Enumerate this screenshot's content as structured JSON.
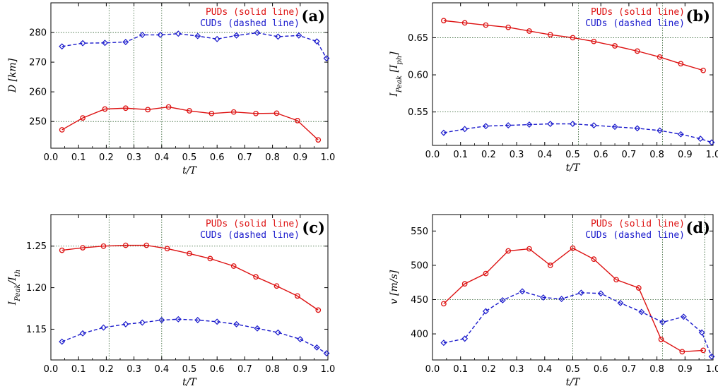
{
  "colors": {
    "pud": "#dd1111",
    "cud": "#1a1acc",
    "grid": "#2f5f2f"
  },
  "chart_data": [
    {
      "type": "line",
      "panel": "(a)",
      "xlabel": "t/T",
      "ylabel": "D [km]",
      "xlim": [
        0.0,
        1.0
      ],
      "ylim": [
        241,
        290
      ],
      "xticks": [
        "0.0",
        "0.1",
        "0.2",
        "0.3",
        "0.4",
        "0.5",
        "0.6",
        "0.7",
        "0.8",
        "0.9",
        "1.0"
      ],
      "xtick_values": [
        0.0,
        0.1,
        0.2,
        0.3,
        0.4,
        0.5,
        0.6,
        0.7,
        0.8,
        0.9,
        1.0
      ],
      "yticks": [
        "250",
        "260",
        "270",
        "280"
      ],
      "ytick_values": [
        250,
        260,
        270,
        280
      ],
      "grid_h": [
        250,
        280
      ],
      "grid_v": [
        0.21,
        0.3,
        0.4
      ],
      "legend": [
        "PUDs (solid line)",
        "CUDs (dashed line)"
      ],
      "series": [
        {
          "name": "PUDs (solid line)",
          "style": "solid",
          "marker": "circle",
          "x": [
            0.04,
            0.115,
            0.195,
            0.27,
            0.35,
            0.425,
            0.5,
            0.58,
            0.66,
            0.74,
            0.815,
            0.89,
            0.965
          ],
          "values": [
            247.2,
            251.2,
            254.2,
            254.5,
            254.0,
            254.9,
            253.6,
            252.7,
            253.2,
            252.7,
            252.8,
            250.3,
            243.8
          ]
        },
        {
          "name": "CUDs (dashed line)",
          "style": "dashed",
          "marker": "diamond",
          "x": [
            0.04,
            0.115,
            0.195,
            0.27,
            0.33,
            0.395,
            0.46,
            0.53,
            0.6,
            0.67,
            0.745,
            0.82,
            0.895,
            0.96,
            0.995
          ],
          "values": [
            275.3,
            276.4,
            276.5,
            276.8,
            279.2,
            279.2,
            279.6,
            278.8,
            277.8,
            279.0,
            279.9,
            278.6,
            279.0,
            277.0,
            271.3
          ]
        }
      ]
    },
    {
      "type": "line",
      "panel": "(b)",
      "xlabel": "t/T",
      "ylabel": "I_Peak [I_ph]",
      "xlim": [
        0.0,
        1.0
      ],
      "ylim": [
        0.505,
        0.697
      ],
      "xticks": [
        "0.0",
        "0.1",
        "0.2",
        "0.3",
        "0.4",
        "0.5",
        "0.6",
        "0.7",
        "0.8",
        "0.9",
        "1.0"
      ],
      "xtick_values": [
        0.0,
        0.1,
        0.2,
        0.3,
        0.4,
        0.5,
        0.6,
        0.7,
        0.8,
        0.9,
        1.0
      ],
      "yticks": [
        "0.55",
        "0.60",
        "0.65"
      ],
      "ytick_values": [
        0.55,
        0.6,
        0.65
      ],
      "grid_h": [
        0.55,
        0.65
      ],
      "grid_v": [
        0.52,
        0.82
      ],
      "legend": [
        "PUDs (solid line)",
        "CUDs (dashed line)"
      ],
      "series": [
        {
          "name": "PUDs (solid line)",
          "style": "solid",
          "marker": "circle",
          "x": [
            0.04,
            0.115,
            0.19,
            0.27,
            0.345,
            0.42,
            0.5,
            0.575,
            0.65,
            0.73,
            0.81,
            0.885,
            0.965
          ],
          "values": [
            0.673,
            0.67,
            0.667,
            0.664,
            0.659,
            0.654,
            0.65,
            0.645,
            0.639,
            0.632,
            0.624,
            0.615,
            0.606
          ]
        },
        {
          "name": "CUDs (dashed line)",
          "style": "dashed",
          "marker": "diamond",
          "x": [
            0.04,
            0.115,
            0.19,
            0.27,
            0.345,
            0.42,
            0.5,
            0.575,
            0.65,
            0.73,
            0.81,
            0.885,
            0.955,
            0.995
          ],
          "values": [
            0.522,
            0.527,
            0.531,
            0.532,
            0.533,
            0.534,
            0.534,
            0.532,
            0.53,
            0.528,
            0.525,
            0.52,
            0.514,
            0.509
          ]
        }
      ]
    },
    {
      "type": "line",
      "panel": "(c)",
      "xlabel": "t/T",
      "ylabel": "I_Peak/I_th",
      "xlim": [
        0.0,
        1.0
      ],
      "ylim": [
        1.113,
        1.288
      ],
      "xticks": [
        "0.0",
        "0.1",
        "0.2",
        "0.3",
        "0.4",
        "0.5",
        "0.6",
        "0.7",
        "0.8",
        "0.9",
        "1.0"
      ],
      "xtick_values": [
        0.0,
        0.1,
        0.2,
        0.3,
        0.4,
        0.5,
        0.6,
        0.7,
        0.8,
        0.9,
        1.0
      ],
      "yticks": [
        "1.15",
        "1.20",
        "1.25"
      ],
      "ytick_values": [
        1.15,
        1.2,
        1.25
      ],
      "grid_h": [
        1.25
      ],
      "grid_v": [
        0.21,
        0.4
      ],
      "legend": [
        "PUDs (solid line)",
        "CUDs (dashed line)"
      ],
      "series": [
        {
          "name": "PUDs (solid line)",
          "style": "solid",
          "marker": "circle",
          "x": [
            0.04,
            0.115,
            0.19,
            0.27,
            0.345,
            0.42,
            0.5,
            0.575,
            0.66,
            0.74,
            0.815,
            0.89,
            0.965
          ],
          "values": [
            1.245,
            1.248,
            1.25,
            1.251,
            1.251,
            1.247,
            1.241,
            1.235,
            1.226,
            1.213,
            1.202,
            1.19,
            1.173
          ]
        },
        {
          "name": "CUDs (dashed line)",
          "style": "dashed",
          "marker": "diamond",
          "x": [
            0.04,
            0.115,
            0.19,
            0.27,
            0.33,
            0.4,
            0.46,
            0.53,
            0.6,
            0.67,
            0.745,
            0.82,
            0.9,
            0.96,
            0.995
          ],
          "values": [
            1.135,
            1.145,
            1.152,
            1.156,
            1.158,
            1.161,
            1.162,
            1.161,
            1.159,
            1.156,
            1.151,
            1.146,
            1.138,
            1.128,
            1.121
          ]
        }
      ]
    },
    {
      "type": "line",
      "panel": "(d)",
      "xlabel": "t/T",
      "ylabel": "v [m/s]",
      "xlim": [
        0.0,
        1.0
      ],
      "ylim": [
        362,
        574
      ],
      "xticks": [
        "0.0",
        "0.1",
        "0.2",
        "0.3",
        "0.4",
        "0.5",
        "0.6",
        "0.7",
        "0.8",
        "0.9",
        "1.0"
      ],
      "xtick_values": [
        0.0,
        0.1,
        0.2,
        0.3,
        0.4,
        0.5,
        0.6,
        0.7,
        0.8,
        0.9,
        1.0
      ],
      "yticks": [
        "400",
        "450",
        "500",
        "550"
      ],
      "ytick_values": [
        400,
        450,
        500,
        550
      ],
      "grid_h": [
        450
      ],
      "grid_v": [
        0.5,
        0.82,
        0.97
      ],
      "legend": [
        "PUDs (solid line)",
        "CUDs (dashed line)"
      ],
      "series": [
        {
          "name": "PUDs (solid line)",
          "style": "solid",
          "marker": "circle",
          "x": [
            0.04,
            0.115,
            0.19,
            0.27,
            0.345,
            0.42,
            0.5,
            0.575,
            0.655,
            0.735,
            0.815,
            0.89,
            0.965
          ],
          "values": [
            444,
            473,
            488,
            521,
            524,
            500,
            525,
            509,
            479,
            467,
            392,
            374,
            376
          ]
        },
        {
          "name": "CUDs (dashed line)",
          "style": "dashed",
          "marker": "diamond",
          "x": [
            0.04,
            0.115,
            0.19,
            0.25,
            0.32,
            0.395,
            0.46,
            0.53,
            0.6,
            0.67,
            0.745,
            0.82,
            0.895,
            0.96,
            0.995
          ],
          "values": [
            387,
            393,
            433,
            449,
            462,
            453,
            451,
            460,
            459,
            445,
            432,
            417,
            425,
            402,
            367
          ]
        }
      ]
    }
  ]
}
